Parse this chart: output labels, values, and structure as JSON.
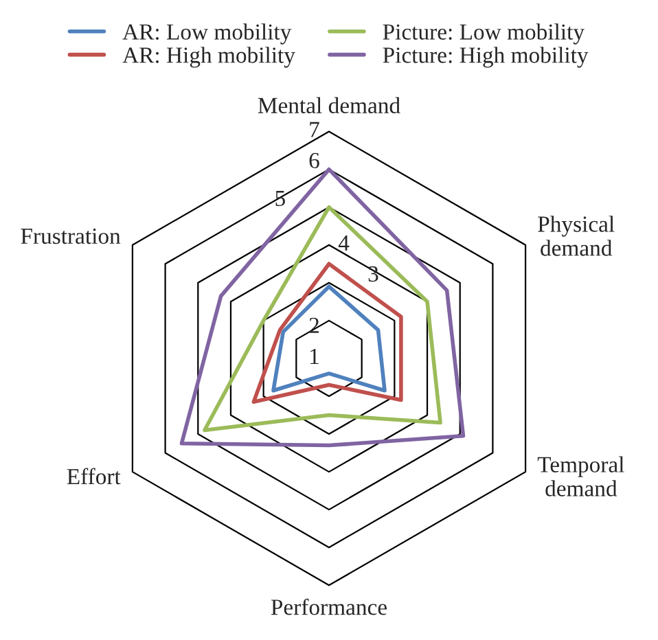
{
  "chart_data": {
    "type": "radar",
    "categories": [
      "Mental demand",
      "Physical demand",
      "Temporal demand",
      "Performance",
      "Effort",
      "Frustration"
    ],
    "series": [
      {
        "name": "AR: Low mobility",
        "color": "#4f81bd",
        "values": [
          2.9,
          2.5,
          2.7,
          1.4,
          2.7,
          2.4
        ]
      },
      {
        "name": "AR: High mobility",
        "color": "#c0504d",
        "values": [
          3.5,
          3.2,
          3.2,
          1.7,
          3.3,
          2.5
        ]
      },
      {
        "name": "Picture: Low mobility",
        "color": "#9bbb59",
        "values": [
          5,
          4,
          4.4,
          2.5,
          4.8,
          3
        ]
      },
      {
        "name": "Picture: High mobility",
        "color": "#8064a2",
        "values": [
          6,
          4.6,
          5.1,
          3.3,
          5.5,
          4.3
        ]
      }
    ],
    "ylim": [
      1,
      7
    ],
    "yticks": [
      1,
      2,
      3,
      4,
      5,
      6,
      7
    ],
    "grid": true,
    "legend": "top"
  }
}
